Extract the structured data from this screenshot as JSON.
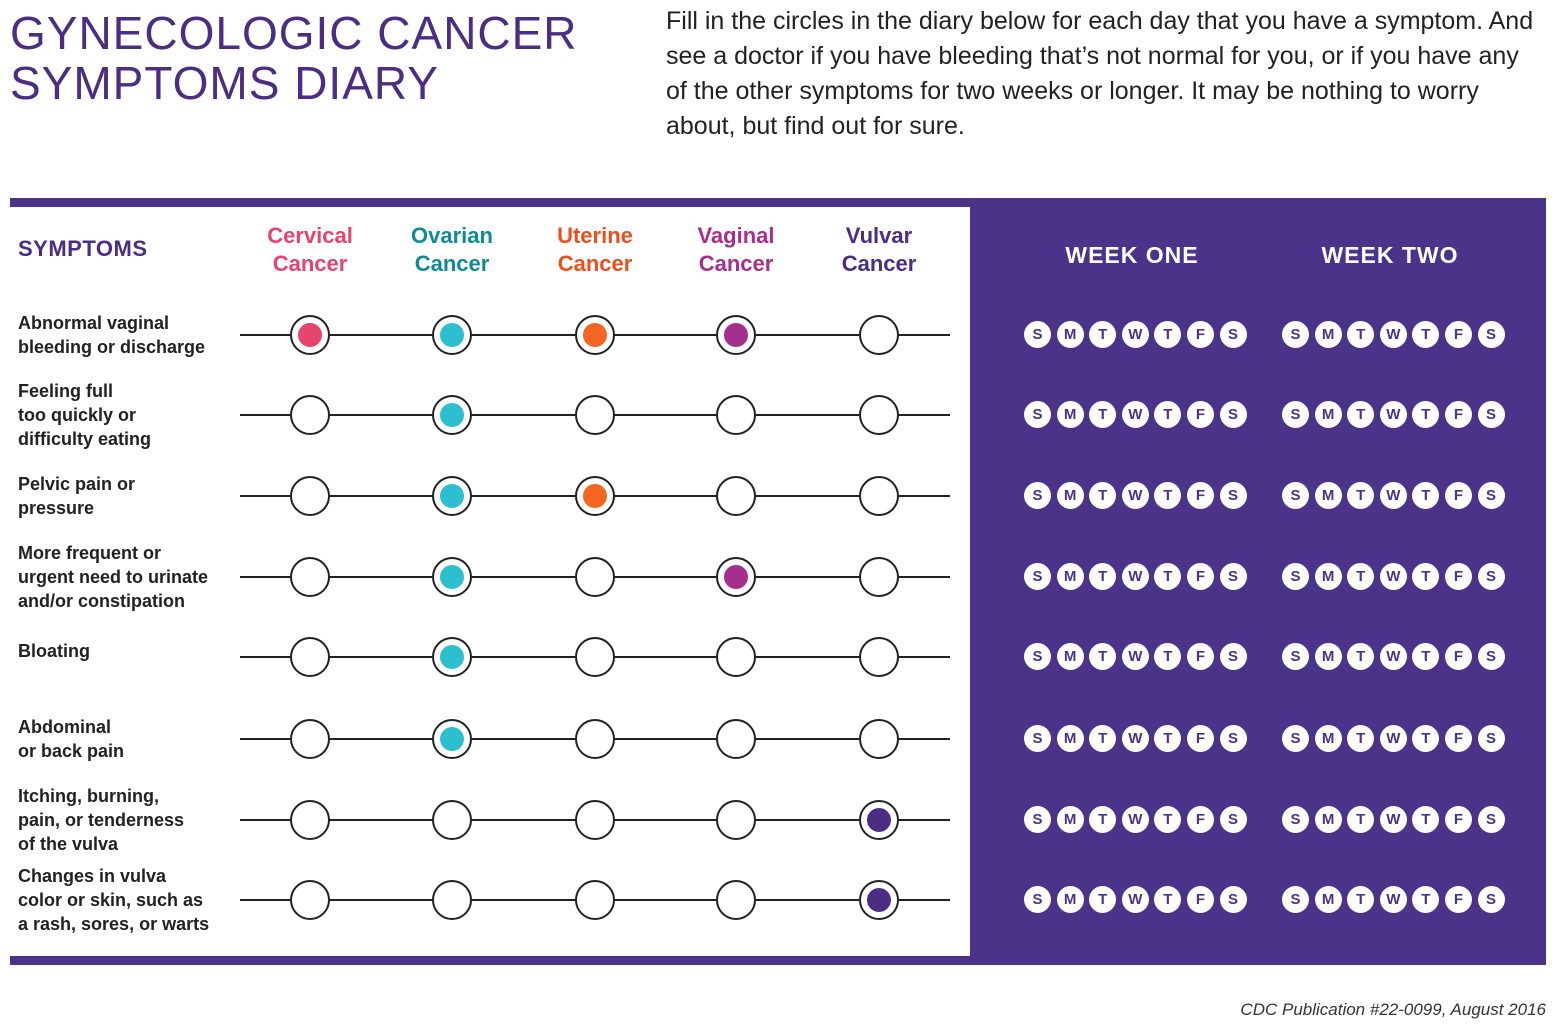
{
  "title": [
    "GYNECOLOGIC CANCER",
    "SYMPTOMS DIARY"
  ],
  "intro": "Fill in the circles in the diary below for each day that you have a symptom. And see a doctor if you have bleeding that’s not normal for you, or if you have any of the other symptoms for two weeks or longer. It may be nothing to worry about, but find out for sure.",
  "symptoms_header": "SYMPTOMS",
  "cancers": [
    {
      "name": [
        "Cervical",
        "Cancer"
      ],
      "color": "#e5446d"
    },
    {
      "name": [
        "Ovarian",
        "Cancer"
      ],
      "color": "#0f8a99"
    },
    {
      "name": [
        "Uterine",
        "Cancer"
      ],
      "color": "#e8501e"
    },
    {
      "name": [
        "Vaginal",
        "Cancer"
      ],
      "color": "#a52e8f"
    },
    {
      "name": [
        "Vulvar",
        "Cancer"
      ],
      "color": "#4b2d83"
    }
  ],
  "dot_colors": [
    "#e5446d",
    "#2bbfd0",
    "#f26522",
    "#a52e8f",
    "#4b2d83"
  ],
  "weeks": [
    "WEEK ONE",
    "WEEK TWO"
  ],
  "days": [
    "S",
    "M",
    "T",
    "W",
    "T",
    "F",
    "S"
  ],
  "symptoms": [
    {
      "label": [
        "Abnormal vaginal",
        "bleeding or discharge"
      ],
      "filled": [
        true,
        true,
        true,
        true,
        false
      ]
    },
    {
      "label": [
        "Feeling full",
        "too quickly or",
        "difficulty eating"
      ],
      "filled": [
        false,
        true,
        false,
        false,
        false
      ]
    },
    {
      "label": [
        "Pelvic pain or",
        "pressure"
      ],
      "filled": [
        false,
        true,
        true,
        false,
        false
      ]
    },
    {
      "label": [
        "More frequent or",
        "urgent need to urinate",
        "and/or constipation"
      ],
      "filled": [
        false,
        true,
        false,
        true,
        false
      ]
    },
    {
      "label": [
        "Bloating"
      ],
      "filled": [
        false,
        true,
        false,
        false,
        false
      ]
    },
    {
      "label": [
        "Abdominal",
        "or back pain"
      ],
      "filled": [
        false,
        true,
        false,
        false,
        false
      ]
    },
    {
      "label": [
        "Itching, burning,",
        "pain, or tenderness",
        "of the vulva"
      ],
      "filled": [
        false,
        false,
        false,
        false,
        true
      ]
    },
    {
      "label": [
        "Changes in vulva",
        "color or skin, such as",
        "a rash, sores, or warts"
      ],
      "filled": [
        false,
        false,
        false,
        false,
        true
      ]
    }
  ],
  "footer": "CDC Publication #22-0099, August 2016"
}
